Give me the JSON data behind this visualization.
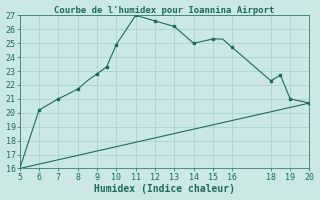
{
  "title": "Courbe de l'humidex pour Ioannina Airport",
  "xlabel": "Humidex (Indice chaleur)",
  "bg_color": "#cce8e4",
  "grid_color": "#b0d4d0",
  "line_color": "#1a6b5a",
  "curve1_x": [
    5,
    6,
    7,
    8,
    8.5,
    9,
    9.5,
    10,
    11,
    12,
    12.5,
    13,
    14,
    15,
    15.5,
    16,
    18,
    18.5,
    19,
    20
  ],
  "curve1_y": [
    16.0,
    20.2,
    21.0,
    21.7,
    22.3,
    22.8,
    23.3,
    24.9,
    27.0,
    26.6,
    26.4,
    26.2,
    25.0,
    25.3,
    25.3,
    24.7,
    22.3,
    22.7,
    21.0,
    20.7
  ],
  "curve2_x": [
    5,
    20
  ],
  "curve2_y": [
    16.0,
    20.7
  ],
  "markers_x": [
    6,
    7,
    8,
    9,
    9.5,
    10,
    11,
    12,
    13,
    14,
    15,
    16,
    18,
    18.5,
    19,
    20
  ],
  "markers_y": [
    20.2,
    21.0,
    21.7,
    22.8,
    23.3,
    24.9,
    27.0,
    26.6,
    26.2,
    25.0,
    25.3,
    24.7,
    22.3,
    22.7,
    21.0,
    20.7
  ],
  "xlim": [
    5,
    20
  ],
  "ylim": [
    16,
    27
  ],
  "xticks": [
    5,
    6,
    7,
    8,
    9,
    10,
    11,
    12,
    13,
    14,
    15,
    16,
    18,
    19,
    20
  ],
  "yticks": [
    16,
    17,
    18,
    19,
    20,
    21,
    22,
    23,
    24,
    25,
    26,
    27
  ],
  "title_fontsize": 6.5,
  "xlabel_fontsize": 7,
  "tick_fontsize": 6
}
